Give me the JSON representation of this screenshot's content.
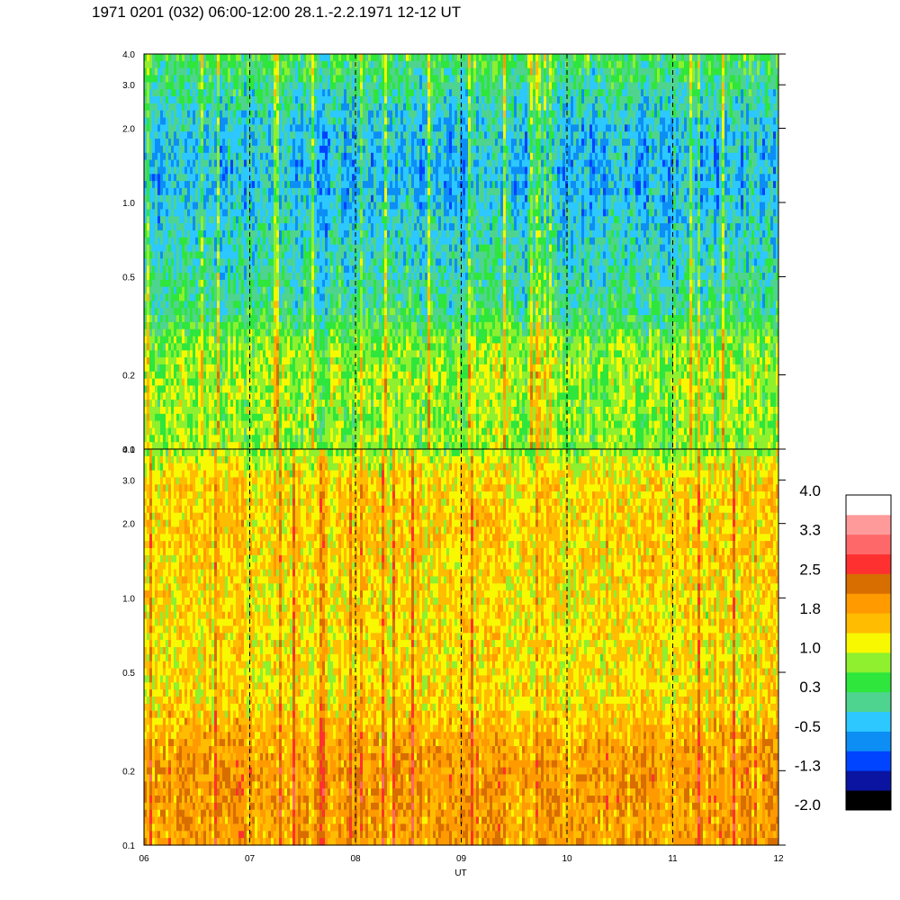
{
  "title": "1971 0201 (032) 06:00-12:00 28.1.-2.2.1971  12-12 UT",
  "chart_data": {
    "type": "heatmap",
    "xlabel": "UT",
    "x_tick_labels": [
      "06",
      "07",
      "08",
      "09",
      "10",
      "11",
      "12"
    ],
    "x_ticks": [
      6,
      7,
      8,
      9,
      10,
      11,
      12
    ],
    "xlim": [
      6,
      12
    ],
    "dashed_hours": [
      7,
      8,
      9,
      10,
      11
    ],
    "y_scale": "log",
    "panels": [
      {
        "name": "",
        "ylim": [
          0.1,
          4.0
        ],
        "y_ticks": [
          0.1,
          0.2,
          0.5,
          1.0,
          2.0,
          3.0,
          4.0
        ],
        "y_tick_labels": [
          "0.1",
          "0.2",
          "0.5",
          "1.0",
          "2.0",
          "3.0",
          "4.0"
        ],
        "dominant_levels": "green to blue (about -1.3 to 0.6), yellow below 0.3",
        "profile": [
          [
            0.1,
            0.75
          ],
          [
            0.2,
            0.85
          ],
          [
            0.27,
            0.7
          ],
          [
            0.35,
            0.2
          ],
          [
            0.5,
            0.0
          ],
          [
            0.8,
            -0.2
          ],
          [
            1.2,
            -0.4
          ],
          [
            2.0,
            -0.3
          ],
          [
            3.0,
            0.1
          ],
          [
            4.0,
            0.4
          ]
        ]
      },
      {
        "name": "",
        "ylim": [
          0.1,
          4.0
        ],
        "y_ticks": [
          0.1,
          0.2,
          0.5,
          1.0,
          2.0,
          3.0,
          4.0
        ],
        "y_tick_labels": [
          "0.1",
          "0.2",
          "0.5",
          "1.0",
          "2.0",
          "3.0",
          "4.0"
        ],
        "dominant_levels": "orange to yellow (about 0.8 to 2.4), red streaks",
        "profile": [
          [
            0.1,
            1.85
          ],
          [
            0.2,
            1.9
          ],
          [
            0.27,
            1.75
          ],
          [
            0.35,
            1.4
          ],
          [
            0.5,
            1.3
          ],
          [
            1.0,
            1.35
          ],
          [
            2.0,
            1.45
          ],
          [
            3.0,
            1.35
          ],
          [
            3.6,
            1.1
          ],
          [
            4.0,
            0.7
          ]
        ]
      }
    ],
    "colorbar": {
      "tick_labels": [
        "4.0",
        "3.3",
        "2.5",
        "1.8",
        "1.0",
        "0.3",
        "-0.5",
        "-1.3",
        "-2.0"
      ],
      "levels": [
        -2.0,
        4.0
      ],
      "colors": [
        "#000000",
        "#0a14a0",
        "#0044ff",
        "#0c8ef5",
        "#2cc8ff",
        "#4ed48e",
        "#2ee63c",
        "#8ef02e",
        "#f8f800",
        "#ffbc00",
        "#ff9a00",
        "#d86e00",
        "#ff3030",
        "#ff6868",
        "#ff9a9a",
        "#ffffff"
      ]
    }
  }
}
